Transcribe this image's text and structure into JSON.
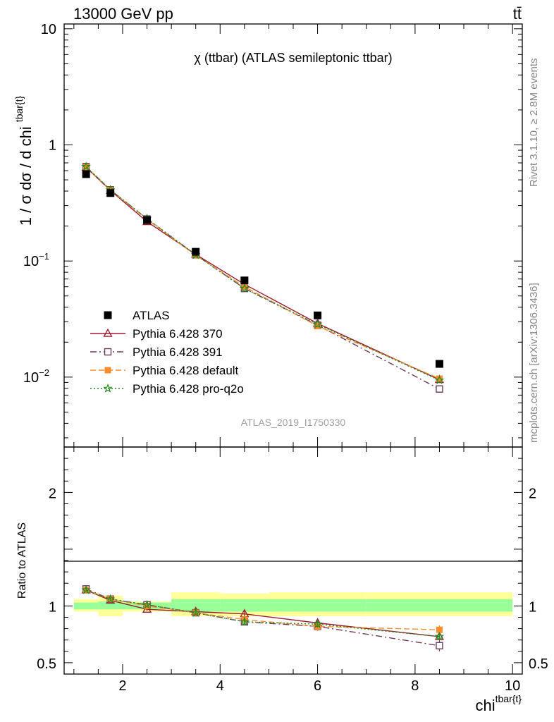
{
  "header": {
    "left": "13000 GeV pp",
    "right": "tt̄"
  },
  "side_labels": {
    "rivet": "Rivet 3.1.10, ≥ 2.8M events",
    "mcplots": "mcplots.cern.ch [arXiv:1306.3436]"
  },
  "chart_data": [
    {
      "type": "scatter",
      "title": "χ (ttbar) (ATLAS semileptonic ttbar)",
      "watermark": "ATLAS_2019_I1750330",
      "ylabel": "1 / σ dσ / d chi^{tbar{t}}",
      "xlabel": "chi^{tbar{t}}",
      "yscale": "log",
      "xlim": [
        0.8,
        10.2
      ],
      "ylim": [
        0.0025,
        11
      ],
      "y_ticks": [
        {
          "value": 10,
          "label": "10"
        },
        {
          "value": 1,
          "label": "1"
        },
        {
          "value": 0.1,
          "label": "10",
          "sup": "−1"
        },
        {
          "value": 0.01,
          "label": "10",
          "sup": "−2"
        }
      ],
      "legend_position": "lower-left",
      "x": [
        1.25,
        1.75,
        2.5,
        3.5,
        4.5,
        6.0,
        8.5
      ],
      "series": [
        {
          "name": "ATLAS",
          "color": "#000000",
          "marker": "filled-square",
          "line": "none",
          "values": [
            0.56,
            0.385,
            0.225,
            0.12,
            0.068,
            0.034,
            0.013
          ]
        },
        {
          "name": "Pythia 6.428 370",
          "color": "#9b1c31",
          "marker": "open-triangle",
          "line": "solid",
          "values": [
            0.64,
            0.405,
            0.218,
            0.114,
            0.063,
            0.029,
            0.0095
          ]
        },
        {
          "name": "Pythia 6.428 391",
          "color": "#6b3a5a",
          "marker": "open-square",
          "line": "dashdot",
          "values": [
            0.65,
            0.41,
            0.23,
            0.113,
            0.058,
            0.028,
            0.0079
          ]
        },
        {
          "name": "Pythia 6.428 default",
          "color": "#ff8c2a",
          "marker": "filled-square",
          "line": "dashed",
          "values": [
            0.645,
            0.408,
            0.228,
            0.112,
            0.06,
            0.0275,
            0.0097
          ]
        },
        {
          "name": "Pythia 6.428 pro-q2o",
          "color": "#1f8c1f",
          "marker": "open-star",
          "line": "dotted",
          "values": [
            0.65,
            0.41,
            0.232,
            0.113,
            0.058,
            0.0285,
            0.0094
          ]
        }
      ]
    },
    {
      "type": "line",
      "ylabel": "Ratio to ATLAS",
      "xlabel": "chi^{tbar{t}}",
      "xlim": [
        0.8,
        10.2
      ],
      "ylim": [
        0.4,
        2.4
      ],
      "y_ticks": [
        {
          "value": 0.5,
          "label": "0.5"
        },
        {
          "value": 1,
          "label": "1"
        },
        {
          "value": 2,
          "label": "2"
        }
      ],
      "x_ticks": [
        {
          "value": 2,
          "label": "2"
        },
        {
          "value": 4,
          "label": "4"
        },
        {
          "value": 6,
          "label": "6"
        },
        {
          "value": 8,
          "label": "8"
        },
        {
          "value": 10,
          "label": "10"
        }
      ],
      "bins": [
        {
          "lo": 1.0,
          "hi": 1.5,
          "inner": [
            0.97,
            1.03
          ],
          "outer": [
            0.95,
            1.06
          ]
        },
        {
          "lo": 1.5,
          "hi": 2.0,
          "inner": [
            0.97,
            1.04
          ],
          "outer": [
            0.91,
            1.09
          ]
        },
        {
          "lo": 2.0,
          "hi": 3.0,
          "inner": [
            0.97,
            1.03
          ],
          "outer": [
            0.95,
            1.04
          ]
        },
        {
          "lo": 3.0,
          "hi": 4.0,
          "inner": [
            0.95,
            1.06
          ],
          "outer": [
            0.91,
            1.12
          ]
        },
        {
          "lo": 4.0,
          "hi": 5.0,
          "inner": [
            0.95,
            1.06
          ],
          "outer": [
            0.91,
            1.11
          ]
        },
        {
          "lo": 5.0,
          "hi": 7.0,
          "inner": [
            0.95,
            1.06
          ],
          "outer": [
            0.91,
            1.12
          ]
        },
        {
          "lo": 7.0,
          "hi": 10.0,
          "inner": [
            0.95,
            1.06
          ],
          "outer": [
            0.91,
            1.12
          ]
        }
      ],
      "x": [
        1.25,
        1.75,
        2.5,
        3.5,
        4.5,
        6.0,
        8.5
      ],
      "series": [
        {
          "name": "Pythia 6.428 370",
          "color": "#9b1c31",
          "marker": "open-triangle",
          "line": "solid",
          "values": [
            1.14,
            1.05,
            0.97,
            0.95,
            0.93,
            0.85,
            0.73
          ],
          "err": [
            0.02,
            0.015,
            0.015,
            0.02,
            0.03,
            0.03,
            0.03
          ]
        },
        {
          "name": "Pythia 6.428 391",
          "color": "#6b3a5a",
          "marker": "open-square",
          "line": "dashdot",
          "values": [
            1.15,
            1.06,
            1.01,
            0.94,
            0.86,
            0.82,
            0.65
          ],
          "err": [
            0.02,
            0.015,
            0.015,
            0.02,
            0.03,
            0.04,
            0.05
          ]
        },
        {
          "name": "Pythia 6.428 default",
          "color": "#ff8c2a",
          "marker": "filled-square",
          "line": "dashed",
          "values": [
            1.14,
            1.06,
            1.0,
            0.94,
            0.88,
            0.82,
            0.79
          ],
          "err": [
            0.02,
            0.015,
            0.015,
            0.02,
            0.03,
            0.04,
            0.04
          ]
        },
        {
          "name": "Pythia 6.428 pro-q2o",
          "color": "#1f8c1f",
          "marker": "open-star",
          "line": "dotted",
          "values": [
            1.14,
            1.06,
            1.01,
            0.94,
            0.86,
            0.84,
            0.73
          ],
          "err": [
            0.02,
            0.015,
            0.015,
            0.02,
            0.03,
            0.03,
            0.03
          ]
        }
      ]
    }
  ]
}
